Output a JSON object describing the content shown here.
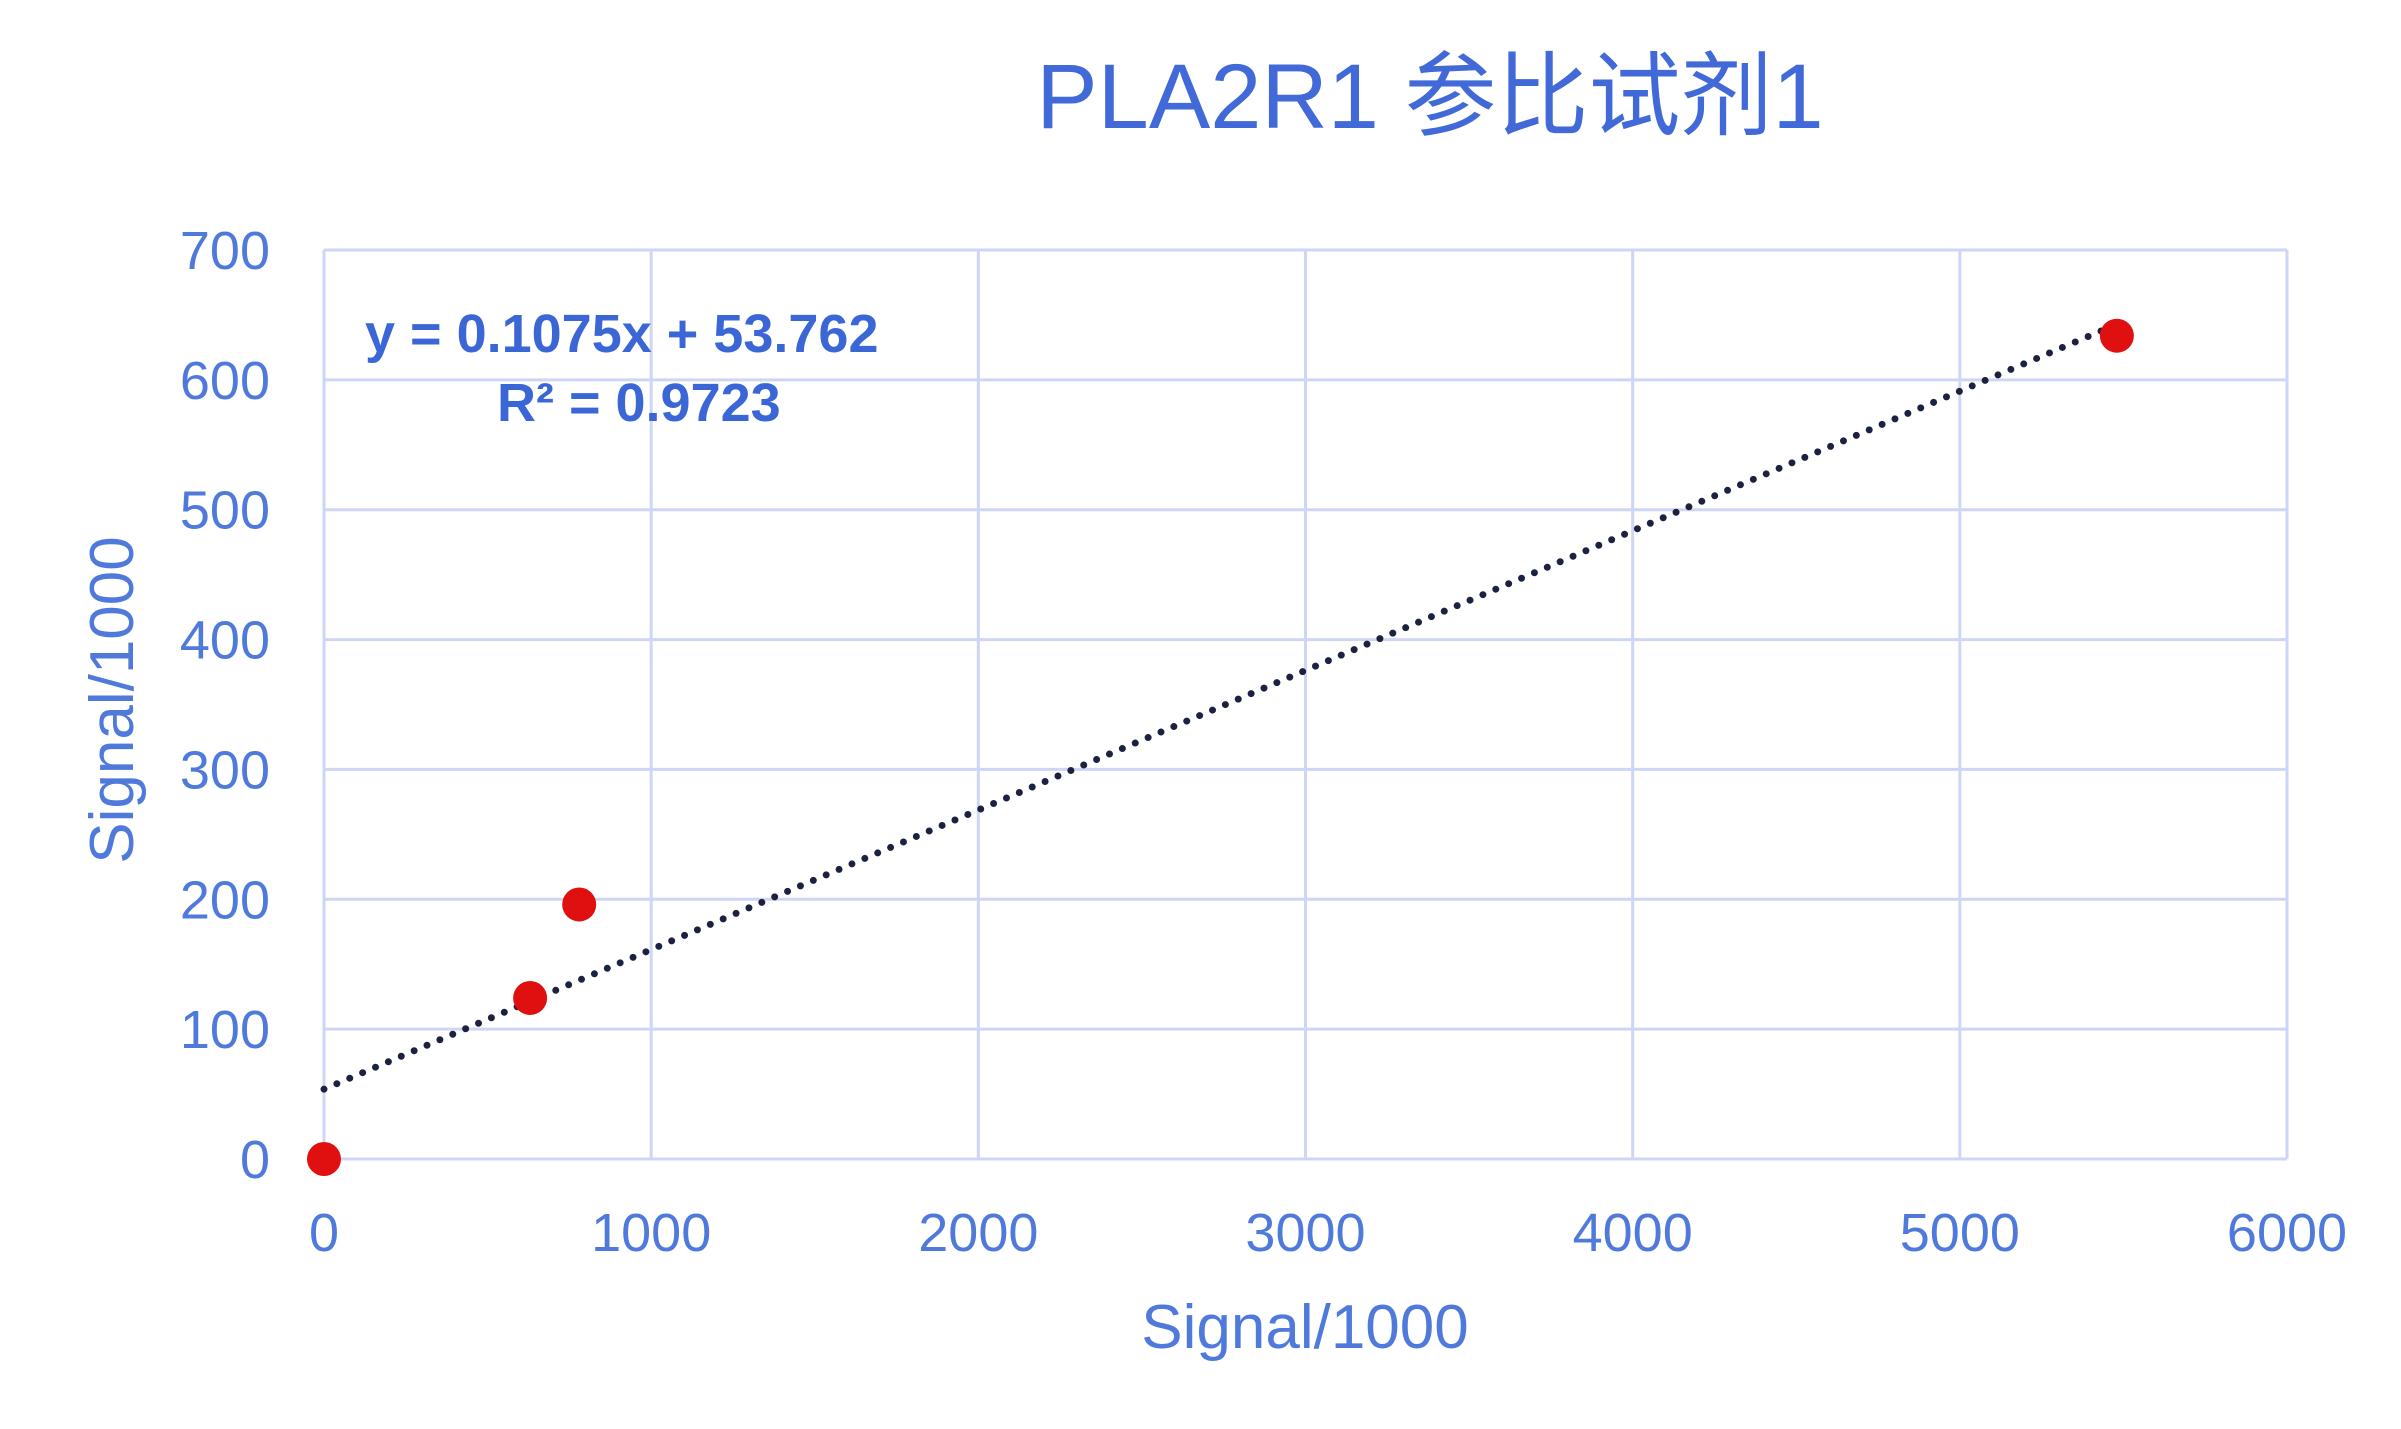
{
  "chart_data": {
    "type": "scatter",
    "title": "PLA2R1 参比试剂1",
    "xlabel": "Signal/1000",
    "ylabel": "Signal/1000",
    "xlim": [
      0,
      6000
    ],
    "ylim": [
      0,
      700
    ],
    "xticks": [
      "0",
      "1000",
      "2000",
      "3000",
      "4000",
      "5000",
      "6000"
    ],
    "yticks": [
      "0",
      "100",
      "200",
      "300",
      "400",
      "500",
      "600",
      "700"
    ],
    "grid": true,
    "series": [
      {
        "points": [
          {
            "x": 0,
            "y": 0
          },
          {
            "x": 630,
            "y": 124
          },
          {
            "x": 780,
            "y": 196
          },
          {
            "x": 5480,
            "y": 634
          }
        ]
      }
    ],
    "trendline": {
      "type": "linear",
      "slope": 0.1075,
      "intercept": 53.762,
      "x_range": [
        0,
        5480
      ]
    },
    "annotations": {
      "equation": "y = 0.1075x + 53.762",
      "r_squared": "R² = 0.9723"
    },
    "colors": {
      "points": "#e01010",
      "trendline": "#1c2140",
      "grid": "#cfd6f5",
      "text": "#4f79db"
    }
  }
}
